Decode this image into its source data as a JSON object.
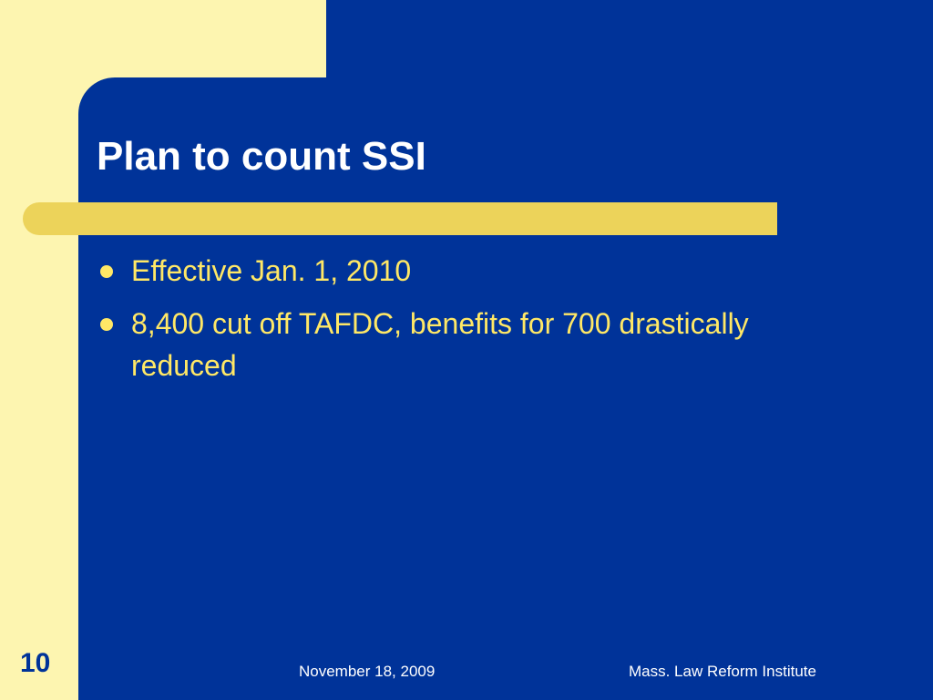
{
  "slide": {
    "title": "Plan to count SSI",
    "bullets": [
      {
        "text": "Effective Jan. 1, 2010"
      },
      {
        "text": "8,400 cut off TAFDC, benefits for 700 drastically reduced"
      }
    ],
    "number": "10"
  },
  "footer": {
    "date": "November 18, 2009",
    "organization": "Mass. Law Reform Institute"
  },
  "colors": {
    "background_blue": "#003399",
    "cream": "#fdf5b0",
    "accent_bar": "#ecd35a",
    "bullet_text": "#ffe866",
    "title_text": "#ffffff"
  }
}
